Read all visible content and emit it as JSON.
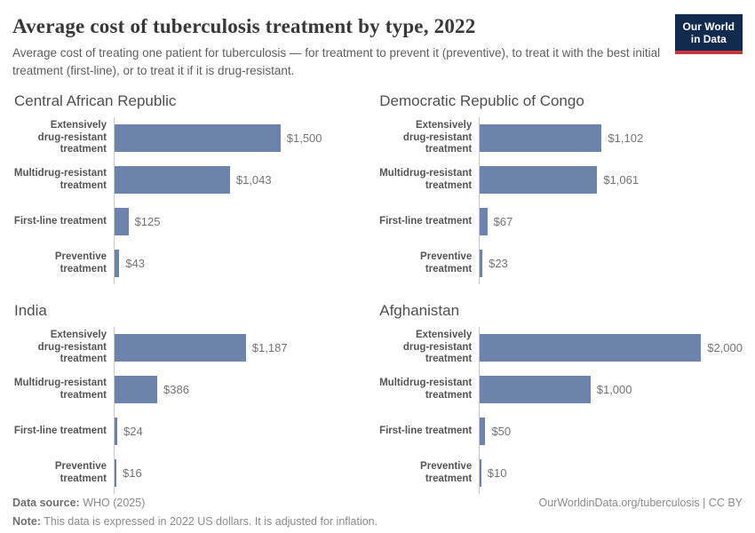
{
  "header": {
    "title": "Average cost of tuberculosis treatment by type, 2022",
    "subtitle": "Average cost of treating one patient for tuberculosis — for treatment to prevent it (preventive), to treat it with the best initial treatment (first-line), or to treat it if it is drug-resistant.",
    "logo": {
      "line1": "Our World",
      "line2": "in Data",
      "bg_color": "#122a4d",
      "accent_color": "#c5383f"
    }
  },
  "chart_data": {
    "type": "bar",
    "orientation": "horizontal",
    "title": "Average cost of tuberculosis treatment by type, 2022",
    "unit": "2022 US dollars",
    "xlim": [
      0,
      2000
    ],
    "grid": false,
    "bar_color": "#6c84ac",
    "categories": [
      "Extensively drug-resistant treatment",
      "Multidrug-resistant treatment",
      "First-line treatment",
      "Preventive treatment"
    ],
    "category_lines": [
      [
        "Extensively",
        "drug-resistant",
        "treatment"
      ],
      [
        "Multidrug-resistant",
        "treatment"
      ],
      [
        "First-line treatment"
      ],
      [
        "Preventive",
        "treatment"
      ]
    ],
    "facets": [
      {
        "title": "Central African Republic",
        "values": [
          1500,
          1043,
          125,
          43
        ],
        "value_labels": [
          "$1,500",
          "$1,043",
          "$125",
          "$43"
        ]
      },
      {
        "title": "Democratic Republic of Congo",
        "values": [
          1102,
          1061,
          67,
          23
        ],
        "value_labels": [
          "$1,102",
          "$1,061",
          "$67",
          "$23"
        ]
      },
      {
        "title": "India",
        "values": [
          1187,
          386,
          24,
          16
        ],
        "value_labels": [
          "$1,187",
          "$386",
          "$24",
          "$16"
        ]
      },
      {
        "title": "Afghanistan",
        "values": [
          2000,
          1000,
          50,
          10
        ],
        "value_labels": [
          "$2,000",
          "$1,000",
          "$50",
          "$10"
        ]
      }
    ]
  },
  "footer": {
    "source_label": "Data source:",
    "source_text": "WHO (2025)",
    "note_label": "Note:",
    "note_text": "This data is expressed in 2022 US dollars. It is adjusted for inflation.",
    "link": "OurWorldinData.org/tuberculosis | CC BY"
  }
}
